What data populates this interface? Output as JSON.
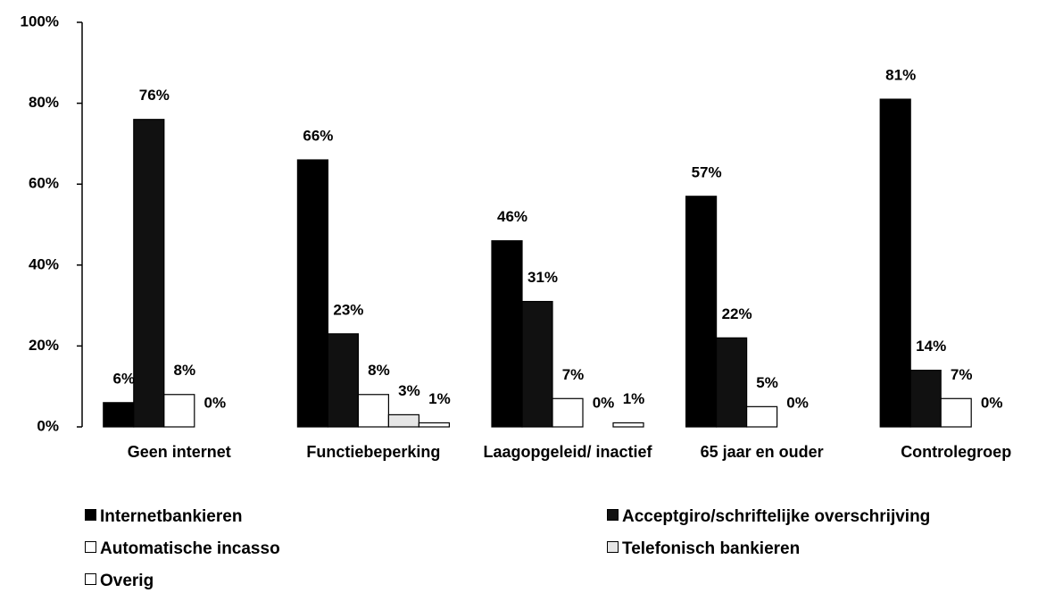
{
  "chart_data": {
    "type": "bar",
    "categories": [
      "Geen internet",
      "Functiebeperking",
      "Laagopgeleid/ inactief",
      "65 jaar en ouder",
      "Controlegroep"
    ],
    "series": [
      {
        "name": "Internetbankieren",
        "color": "#000000",
        "values": [
          6,
          66,
          46,
          57,
          81
        ],
        "value_labels": [
          "6%",
          "66%",
          "46%",
          "57%",
          "81%"
        ]
      },
      {
        "name": "Acceptgiro/schriftelijke overschrijving",
        "color": "#111111",
        "values": [
          76,
          23,
          31,
          22,
          14
        ],
        "value_labels": [
          "76%",
          "23%",
          "31%",
          "22%",
          "14%"
        ]
      },
      {
        "name": "Automatische incasso",
        "color": "#ffffff",
        "values": [
          8,
          8,
          7,
          5,
          7
        ],
        "value_labels": [
          "8%",
          "8%",
          "7%",
          "5%",
          "7%"
        ]
      },
      {
        "name": "Telefonisch bankieren",
        "color": "#e6e6e6",
        "values": [
          0,
          3,
          0,
          0,
          0
        ],
        "value_labels": [
          "0%",
          "3%",
          "0%",
          "0%",
          "0%"
        ]
      },
      {
        "name": "Overig",
        "color": "#ffffff",
        "values": [
          null,
          1,
          1,
          null,
          null
        ],
        "value_labels": [
          null,
          "1%",
          "1%",
          null,
          null
        ]
      }
    ],
    "ylim": [
      0,
      100
    ],
    "yticks": [
      {
        "value": 0,
        "label": "0%"
      },
      {
        "value": 20,
        "label": "20%"
      },
      {
        "value": 40,
        "label": "40%"
      },
      {
        "value": 60,
        "label": "60%"
      },
      {
        "value": 80,
        "label": "80%"
      },
      {
        "value": 100,
        "label": "100%"
      }
    ],
    "legend": "bottom"
  }
}
